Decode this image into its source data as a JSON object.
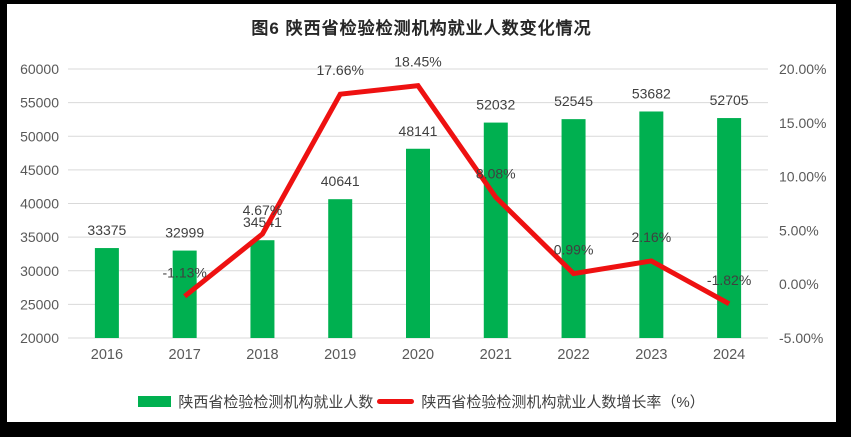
{
  "title": "图6 陕西省检验检测机构就业人数变化情况",
  "chart_data": {
    "type": "bar+line combo",
    "title": "图6 陕西省检验检测机构就业人数变化情况",
    "categories": [
      "2016",
      "2017",
      "2018",
      "2019",
      "2020",
      "2021",
      "2022",
      "2023",
      "2024"
    ],
    "series": [
      {
        "name": "陕西省检验检测机构就业人数",
        "type": "bar",
        "axis": "left",
        "color": "#00B050",
        "values": [
          33375,
          32999,
          34541,
          40641,
          48141,
          52032,
          52545,
          53682,
          52705
        ],
        "labels": [
          "33375",
          "32999",
          "34541",
          "40641",
          "48141",
          "52032",
          "52545",
          "53682",
          "52705"
        ]
      },
      {
        "name": "陕西省检验检测机构就业人数增长率（%）",
        "type": "line",
        "axis": "right",
        "color": "#EE1111",
        "values": [
          null,
          -1.13,
          4.67,
          17.66,
          18.45,
          8.08,
          0.99,
          2.16,
          -1.82
        ],
        "labels": [
          null,
          "-1.13%",
          "4.67%",
          "17.66%",
          "18.45%",
          "8.08%",
          "0.99%",
          "2.16%",
          "-1.82%"
        ]
      }
    ],
    "left_axis": {
      "min": 20000,
      "max": 60000,
      "step": 5000,
      "ticks": [
        "60000",
        "55000",
        "50000",
        "45000",
        "40000",
        "35000",
        "30000",
        "25000",
        "20000"
      ]
    },
    "right_axis": {
      "min": -5,
      "max": 20,
      "step": 5,
      "ticks": [
        "20.00%",
        "15.00%",
        "10.00%",
        "5.00%",
        "0.00%",
        "-5.00%"
      ]
    },
    "grid": "horizontal gridlines at each left-axis tick",
    "legend_position": "bottom"
  },
  "colors": {
    "bar": "#00B050",
    "line": "#EE1111",
    "grid": "#D9D9D9",
    "tick_text": "#595959",
    "data_label": "#404040",
    "title_text": "#262626",
    "frame": "#000000",
    "panel": "#ffffff"
  }
}
